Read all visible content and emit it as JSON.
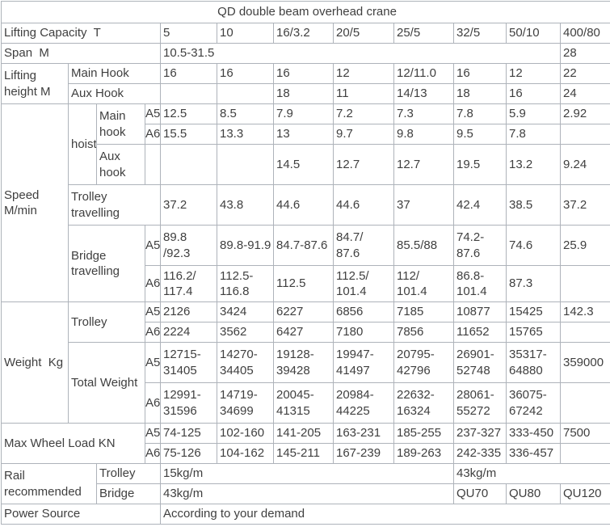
{
  "colors": {
    "text": "#3f3f3f",
    "border": "#aeb3ba",
    "background": "#ffffff"
  },
  "table": {
    "title": "QD double beam overhead crane",
    "rows": [
      {
        "cells": [
          {
            "t": "QD double beam overhead crane",
            "c": 12,
            "k": "tc",
            "n": "table-title"
          }
        ]
      },
      {
        "cells": [
          {
            "t": "Lifting Capacity  T",
            "c": 4,
            "n": "row-header-lifting-capacity"
          },
          {
            "t": "5"
          },
          {
            "t": "10"
          },
          {
            "t": "16/3.2"
          },
          {
            "t": "20/5"
          },
          {
            "t": "25/5"
          },
          {
            "t": "32/5"
          },
          {
            "t": "50/10"
          },
          {
            "t": "400/80"
          }
        ]
      },
      {
        "cells": [
          {
            "t": "Span  M",
            "c": 4,
            "n": "row-header-span"
          },
          {
            "t": "10.5-31.5",
            "c": 7
          },
          {
            "t": "28"
          }
        ]
      },
      {
        "cells": [
          {
            "t": "Lifting\nheight M",
            "r": 2,
            "n": "row-header-lifting-height"
          },
          {
            "t": "Main Hook",
            "c": 3,
            "n": "subrow-header-main-hook"
          },
          {
            "t": "16"
          },
          {
            "t": "16"
          },
          {
            "t": "16"
          },
          {
            "t": "12"
          },
          {
            "t": "12/11.0"
          },
          {
            "t": "16"
          },
          {
            "t": "12"
          },
          {
            "t": "22"
          }
        ]
      },
      {
        "cells": [
          {
            "t": "Aux Hook",
            "c": 3,
            "n": "subrow-header-aux-hook"
          },
          {
            "t": ""
          },
          {
            "t": ""
          },
          {
            "t": "18"
          },
          {
            "t": "11"
          },
          {
            "t": "14/13"
          },
          {
            "t": "18"
          },
          {
            "t": "16"
          },
          {
            "t": "24"
          }
        ]
      },
      {
        "cells": [
          {
            "t": "Speed\nM/min",
            "r": 6,
            "n": "row-header-speed"
          },
          {
            "t": "hoist",
            "r": 3,
            "n": "subrow-header-hoist"
          },
          {
            "t": "Main\nhook",
            "r": 2,
            "n": "subrow-header-main-hook"
          },
          {
            "t": "A5",
            "k": "ac",
            "n": "duty-class-a5"
          },
          {
            "t": "12.5"
          },
          {
            "t": "8.5"
          },
          {
            "t": "7.9"
          },
          {
            "t": "7.2"
          },
          {
            "t": "7.3"
          },
          {
            "t": "7.8"
          },
          {
            "t": "5.9"
          },
          {
            "t": "2.92"
          }
        ]
      },
      {
        "cells": [
          {
            "t": "A6",
            "k": "ac",
            "n": "duty-class-a6"
          },
          {
            "t": "15.5"
          },
          {
            "t": "13.3"
          },
          {
            "t": "13"
          },
          {
            "t": "9.7"
          },
          {
            "t": "9.8"
          },
          {
            "t": "9.5"
          },
          {
            "t": "7.8"
          },
          {
            "t": ""
          }
        ]
      },
      {
        "cells": [
          {
            "t": "Aux\nhook",
            "n": "subrow-header-aux-hook"
          },
          {
            "t": "",
            "k": "ac"
          },
          {
            "t": ""
          },
          {
            "t": ""
          },
          {
            "t": "14.5"
          },
          {
            "t": "12.7"
          },
          {
            "t": "12.7"
          },
          {
            "t": "19.5"
          },
          {
            "t": "13.2"
          },
          {
            "t": "9.24"
          }
        ]
      },
      {
        "cells": [
          {
            "t": "Trolley\ntravelling",
            "c": 3,
            "n": "subrow-header-trolley-travelling"
          },
          {
            "t": "37.2"
          },
          {
            "t": "43.8"
          },
          {
            "t": "44.6"
          },
          {
            "t": "44.6"
          },
          {
            "t": "37"
          },
          {
            "t": "42.4"
          },
          {
            "t": "38.5"
          },
          {
            "t": "37.2"
          }
        ]
      },
      {
        "cells": [
          {
            "t": "Bridge\ntravelling",
            "r": 2,
            "c": 2,
            "n": "subrow-header-bridge-travelling"
          },
          {
            "t": "A5",
            "k": "ac",
            "n": "duty-class-a5"
          },
          {
            "t": "89.8\n/92.3"
          },
          {
            "t": "89.8-91.9"
          },
          {
            "t": "84.7-87.6"
          },
          {
            "t": "84.7/\n87.6"
          },
          {
            "t": "85.5/88"
          },
          {
            "t": "74.2-87.6"
          },
          {
            "t": "74.6"
          },
          {
            "t": "25.9"
          }
        ]
      },
      {
        "cells": [
          {
            "t": "A6",
            "k": "ac",
            "n": "duty-class-a6"
          },
          {
            "t": "116.2/\n117.4"
          },
          {
            "t": "112.5-\n116.8"
          },
          {
            "t": "112.5"
          },
          {
            "t": "112.5/\n101.4"
          },
          {
            "t": "112/\n101.4"
          },
          {
            "t": "86.8-\n101.4"
          },
          {
            "t": "87.3"
          },
          {
            "t": ""
          }
        ]
      },
      {
        "cells": [
          {
            "t": "Weight  Kg",
            "r": 4,
            "n": "row-header-weight"
          },
          {
            "t": "Trolley",
            "r": 2,
            "c": 2,
            "n": "subrow-header-trolley"
          },
          {
            "t": "A5",
            "k": "ac",
            "n": "duty-class-a5"
          },
          {
            "t": "2126"
          },
          {
            "t": "3424"
          },
          {
            "t": "6227"
          },
          {
            "t": "6856"
          },
          {
            "t": "7185"
          },
          {
            "t": "10877"
          },
          {
            "t": "15425"
          },
          {
            "t": "142.3"
          }
        ]
      },
      {
        "cells": [
          {
            "t": "A6",
            "k": "ac",
            "n": "duty-class-a6"
          },
          {
            "t": "2224"
          },
          {
            "t": "3562"
          },
          {
            "t": "6427"
          },
          {
            "t": "7180"
          },
          {
            "t": "7856"
          },
          {
            "t": "11652"
          },
          {
            "t": "15765"
          },
          {
            "t": ""
          }
        ]
      },
      {
        "cells": [
          {
            "t": "Total Weight",
            "r": 2,
            "c": 2,
            "n": "subrow-header-total-weight"
          },
          {
            "t": "A5",
            "k": "ac",
            "n": "duty-class-a5"
          },
          {
            "t": "12715-\n31405"
          },
          {
            "t": "14270-\n34405"
          },
          {
            "t": "19128-\n39428"
          },
          {
            "t": "19947-\n41497"
          },
          {
            "t": "20795-\n42796"
          },
          {
            "t": "26901-\n52748"
          },
          {
            "t": "35317-\n64880"
          },
          {
            "t": "359000"
          }
        ]
      },
      {
        "cells": [
          {
            "t": "A6",
            "k": "ac",
            "n": "duty-class-a6"
          },
          {
            "t": "12991-\n31596"
          },
          {
            "t": "14719-\n34699"
          },
          {
            "t": "20045-\n41315"
          },
          {
            "t": "20984-\n44225"
          },
          {
            "t": "22632-\n16324"
          },
          {
            "t": "28061-\n55272"
          },
          {
            "t": "36075-\n67242"
          },
          {
            "t": ""
          }
        ]
      },
      {
        "cells": [
          {
            "t": "Max Wheel Load KN",
            "r": 2,
            "c": 3,
            "n": "row-header-max-wheel-load"
          },
          {
            "t": "A5",
            "k": "ac",
            "n": "duty-class-a5"
          },
          {
            "t": "74-125"
          },
          {
            "t": "102-160"
          },
          {
            "t": "141-205"
          },
          {
            "t": "163-231"
          },
          {
            "t": "185-255"
          },
          {
            "t": "237-327"
          },
          {
            "t": "333-450"
          },
          {
            "t": "7500"
          }
        ]
      },
      {
        "cells": [
          {
            "t": "A6",
            "k": "ac",
            "n": "duty-class-a6"
          },
          {
            "t": "75-126"
          },
          {
            "t": "104-162"
          },
          {
            "t": "145-211"
          },
          {
            "t": "167-239"
          },
          {
            "t": "189-263"
          },
          {
            "t": "242-335"
          },
          {
            "t": "336-457"
          },
          {
            "t": ""
          }
        ]
      },
      {
        "cells": [
          {
            "t": "Rail\nrecommended",
            "r": 2,
            "c": 2,
            "n": "row-header-rail-recommended"
          },
          {
            "t": "Trolley",
            "c": 2,
            "n": "subrow-header-trolley"
          },
          {
            "t": "15kg/m",
            "c": 5
          },
          {
            "t": "43kg/m",
            "c": 3
          }
        ]
      },
      {
        "cells": [
          {
            "t": "Bridge",
            "c": 2,
            "n": "subrow-header-bridge"
          },
          {
            "t": "43kg/m",
            "c": 5
          },
          {
            "t": "QU70"
          },
          {
            "t": "QU80"
          },
          {
            "t": "QU120"
          }
        ]
      },
      {
        "cells": [
          {
            "t": "Power Source",
            "c": 4,
            "n": "row-header-power-source"
          },
          {
            "t": "According to your demand",
            "c": 8,
            "n": "power-source-value"
          }
        ]
      }
    ]
  }
}
